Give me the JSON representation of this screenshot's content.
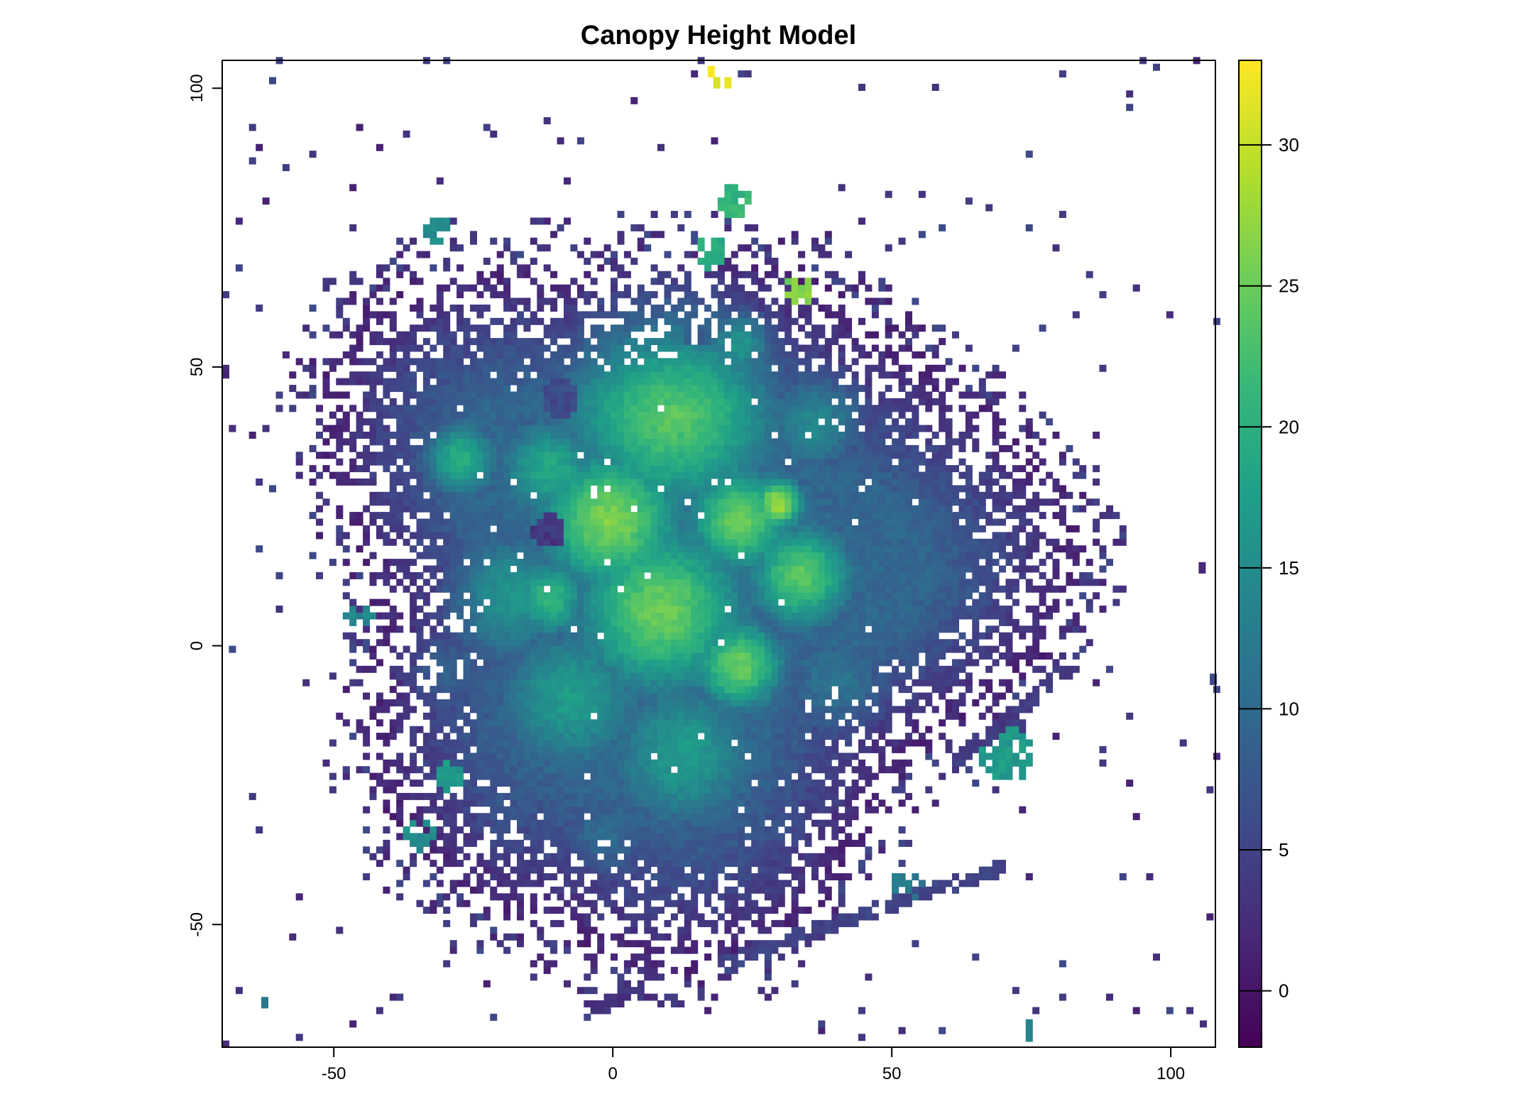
{
  "chart_data": {
    "type": "heatmap",
    "title": "Canopy Height Model",
    "xlabel": "",
    "ylabel": "",
    "xlim": [
      -70,
      108
    ],
    "ylim": [
      -72,
      105
    ],
    "x_ticks": [
      -50,
      0,
      50,
      100
    ],
    "y_ticks": [
      -50,
      0,
      50,
      100
    ],
    "colorbar": {
      "min": -2,
      "max": 33,
      "ticks": [
        0,
        5,
        10,
        15,
        20,
        25,
        30
      ],
      "palette": [
        "#440154",
        "#482878",
        "#3E4A89",
        "#31688E",
        "#26828E",
        "#1F9E89",
        "#35B779",
        "#6DCD59",
        "#B4DE2C",
        "#FDE725"
      ]
    },
    "crowns": [
      {
        "x": 10,
        "y": 42,
        "r": 16,
        "h": 24
      },
      {
        "x": -1,
        "y": 22,
        "r": 11,
        "h": 26
      },
      {
        "x": 22,
        "y": 22,
        "r": 8,
        "h": 25
      },
      {
        "x": 29,
        "y": 25,
        "r": 4,
        "h": 28
      },
      {
        "x": 8,
        "y": 6,
        "r": 13,
        "h": 25
      },
      {
        "x": 22,
        "y": -4,
        "r": 7,
        "h": 25
      },
      {
        "x": 33,
        "y": 12,
        "r": 8,
        "h": 24
      },
      {
        "x": -28,
        "y": 33,
        "r": 6,
        "h": 20
      },
      {
        "x": -12,
        "y": 31,
        "r": 8,
        "h": 19
      },
      {
        "x": 36,
        "y": 40,
        "r": 8,
        "h": 16
      },
      {
        "x": -20,
        "y": 8,
        "r": 10,
        "h": 17
      },
      {
        "x": -8,
        "y": -10,
        "r": 12,
        "h": 17
      },
      {
        "x": 12,
        "y": -20,
        "r": 12,
        "h": 17
      },
      {
        "x": 40,
        "y": -8,
        "r": 9,
        "h": 13
      },
      {
        "x": -30,
        "y": -5,
        "r": 8,
        "h": 11
      },
      {
        "x": -20,
        "y": -30,
        "r": 8,
        "h": 9
      },
      {
        "x": 30,
        "y": -33,
        "r": 7,
        "h": 8
      },
      {
        "x": -12,
        "y": 8,
        "r": 6,
        "h": 21
      },
      {
        "x": 22,
        "y": 54,
        "r": 5,
        "h": 21
      },
      {
        "x": -2,
        "y": -35,
        "r": 7,
        "h": 12
      }
    ],
    "gaps": [
      {
        "x": -12,
        "y": 20,
        "r": 3,
        "h": 3
      },
      {
        "x": -10,
        "y": 44,
        "r": 3.5,
        "h": 5
      },
      {
        "x": 15,
        "y": 56,
        "r": 3,
        "h": 8
      }
    ],
    "patches": [
      {
        "x": 21,
        "y": 79,
        "r": 3,
        "h": 21
      },
      {
        "x": 33,
        "y": 63,
        "r": 3,
        "h": 26
      },
      {
        "x": 70,
        "y": -20,
        "r": 5,
        "h": 17
      },
      {
        "x": 52,
        "y": -44,
        "r": 3,
        "h": 12
      },
      {
        "x": -32,
        "y": 74,
        "r": 2.5,
        "h": 15
      },
      {
        "x": -46,
        "y": 5,
        "r": 2.5,
        "h": 14
      },
      {
        "x": -35,
        "y": -35,
        "r": 3,
        "h": 15
      },
      {
        "x": -30,
        "y": -24,
        "r": 2.5,
        "h": 17
      },
      {
        "x": 17,
        "y": 70,
        "r": 3,
        "h": 19
      }
    ],
    "streaks": [
      {
        "from": [
          17,
          -58
        ],
        "to": [
          70,
          -40
        ],
        "h": 4
      },
      {
        "from": [
          60,
          -22
        ],
        "to": [
          83,
          -3
        ],
        "h": 3
      },
      {
        "from": [
          -5,
          -66
        ],
        "to": [
          5,
          -62
        ],
        "h": 2
      }
    ],
    "outliers": [
      {
        "x": 17,
        "y": 103,
        "h": 33
      },
      {
        "x": 18,
        "y": 101,
        "h": 31
      },
      {
        "x": 20,
        "y": 101,
        "h": 32
      },
      {
        "x": 74,
        "y": -70,
        "h": 14
      },
      {
        "x": 74,
        "y": -68,
        "h": 14
      },
      {
        "x": -63,
        "y": -64,
        "h": 12
      },
      {
        "x": 105,
        "y": 14,
        "h": 2
      },
      {
        "x": 107,
        "y": -6,
        "h": 6
      }
    ]
  }
}
